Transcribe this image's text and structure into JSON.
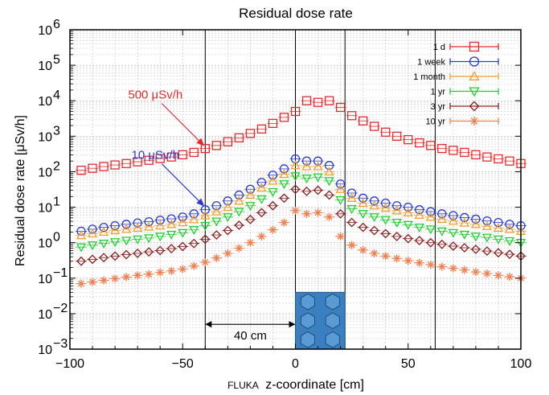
{
  "chart_data": {
    "type": "scatter",
    "title": "Residual dose rate",
    "xlabel_small": "FLUKA",
    "xlabel": "z-coordinate [cm]",
    "ylabel": "Residual dose rate [μSv/h]",
    "xlim": [
      -100,
      100
    ],
    "ylim_log10": [
      -3,
      6
    ],
    "yscale": "log",
    "grid": true,
    "legend_position": "top-right",
    "x_ticks": [
      "−100",
      "−50",
      "0",
      "50",
      "100"
    ],
    "x_tick_values": [
      -100,
      -50,
      0,
      50,
      100
    ],
    "y_tick_exponents": [
      -3,
      -2,
      -1,
      0,
      1,
      2,
      3,
      4,
      5,
      6
    ],
    "vertical_lines_x": [
      -40,
      0,
      22,
      62
    ],
    "x": [
      -95,
      -90,
      -85,
      -80,
      -75,
      -70,
      -65,
      -60,
      -55,
      -50,
      -45,
      -40,
      -35,
      -30,
      -25,
      -20,
      -15,
      -10,
      -5,
      0,
      5,
      10,
      15,
      20,
      25,
      30,
      35,
      40,
      45,
      50,
      55,
      60,
      65,
      70,
      75,
      80,
      85,
      90,
      95,
      100
    ],
    "series": [
      {
        "name": "1 d",
        "marker": "square",
        "color": "#e8292b",
        "values": [
          110,
          125,
          140,
          155,
          170,
          190,
          210,
          235,
          260,
          300,
          350,
          450,
          550,
          700,
          900,
          1200,
          1600,
          2300,
          3400,
          5000,
          10000,
          9000,
          10000,
          6500,
          3800,
          2700,
          1900,
          1300,
          1000,
          800,
          650,
          550,
          450,
          400,
          350,
          300,
          260,
          230,
          200,
          170
        ]
      },
      {
        "name": "1 week",
        "marker": "circle",
        "color": "#2a3ad2",
        "values": [
          2.1,
          2.4,
          2.7,
          3.0,
          3.3,
          3.6,
          3.9,
          4.3,
          4.7,
          5.3,
          6.5,
          8.5,
          11,
          15,
          22,
          32,
          50,
          80,
          120,
          230,
          200,
          200,
          150,
          45,
          25,
          18,
          15,
          13,
          11,
          10,
          8.5,
          7.5,
          6.5,
          5.8,
          5.1,
          4.6,
          4.1,
          3.7,
          3.3,
          3.0
        ]
      },
      {
        "name": "1 month",
        "marker": "triangle-up",
        "color": "#f0a030",
        "values": [
          1.6,
          1.8,
          2.0,
          2.2,
          2.4,
          2.6,
          2.8,
          3.0,
          3.3,
          3.7,
          4.5,
          5.8,
          7.5,
          10,
          15,
          22,
          35,
          55,
          85,
          150,
          140,
          140,
          100,
          32,
          18,
          13,
          11,
          9.5,
          8,
          7,
          6,
          5.3,
          4.6,
          4.1,
          3.6,
          3.3,
          2.9,
          2.6,
          2.4,
          2.1
        ]
      },
      {
        "name": "1 yr",
        "marker": "triangle-down",
        "color": "#1ed22e",
        "values": [
          0.75,
          0.85,
          0.95,
          1.05,
          1.15,
          1.25,
          1.35,
          1.5,
          1.7,
          1.9,
          2.3,
          3.0,
          4.0,
          5.3,
          7.5,
          11,
          17,
          27,
          45,
          75,
          65,
          70,
          55,
          16,
          9,
          6.5,
          5.3,
          4.4,
          3.7,
          3.2,
          2.7,
          2.4,
          2.1,
          1.9,
          1.7,
          1.5,
          1.4,
          1.25,
          1.12,
          1.0
        ]
      },
      {
        "name": "3 yr",
        "marker": "diamond",
        "color": "#8a2020",
        "values": [
          0.3,
          0.34,
          0.38,
          0.42,
          0.46,
          0.5,
          0.55,
          0.6,
          0.68,
          0.78,
          0.95,
          1.25,
          1.65,
          2.2,
          3.1,
          4.5,
          7,
          11,
          18,
          32,
          28,
          30,
          22,
          6.5,
          3.7,
          2.7,
          2.2,
          1.8,
          1.5,
          1.3,
          1.15,
          1.0,
          0.9,
          0.8,
          0.72,
          0.65,
          0.58,
          0.52,
          0.47,
          0.42
        ]
      },
      {
        "name": "10 yr",
        "marker": "star",
        "color": "#f08050",
        "values": [
          0.07,
          0.078,
          0.087,
          0.097,
          0.108,
          0.12,
          0.13,
          0.145,
          0.16,
          0.18,
          0.22,
          0.28,
          0.37,
          0.5,
          0.7,
          1.0,
          1.5,
          2.3,
          3.7,
          8,
          6.5,
          7,
          5.3,
          1.5,
          0.85,
          0.62,
          0.5,
          0.42,
          0.36,
          0.31,
          0.27,
          0.24,
          0.21,
          0.19,
          0.17,
          0.15,
          0.135,
          0.12,
          0.11,
          0.1
        ]
      }
    ],
    "annotations": [
      {
        "text": "500 μSv/h",
        "color": "#e8292b",
        "target_x": -40,
        "target_y": 500
      },
      {
        "text": "10 μSv/h",
        "color": "#2a3ad2",
        "target_x": -40,
        "target_y": 10
      }
    ],
    "dimension": {
      "text": "40 cm",
      "from_x": -40,
      "to_x": 0,
      "at_y": 0.005
    }
  }
}
